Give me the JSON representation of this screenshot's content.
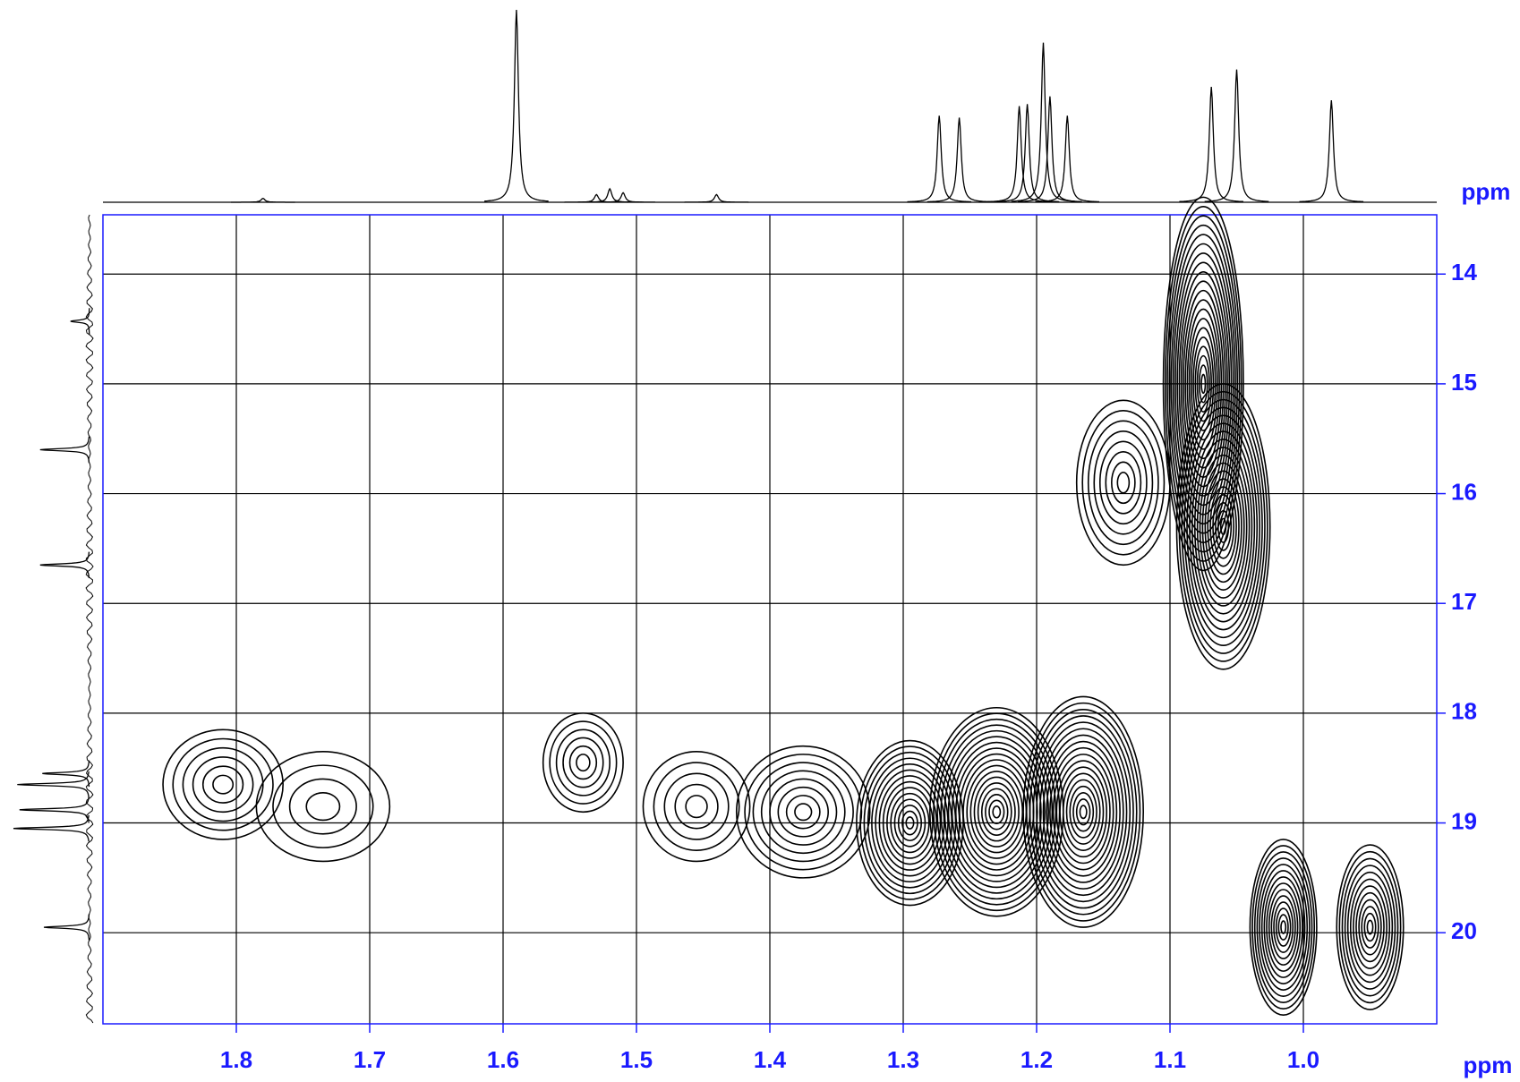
{
  "chart_data": {
    "type": "contour",
    "xlabel": "ppm",
    "ylabel": "ppm",
    "xlim": [
      1.9,
      0.9
    ],
    "ylim": [
      13.46,
      20.83
    ],
    "xticks": [
      1.8,
      1.7,
      1.6,
      1.5,
      1.4,
      1.3,
      1.2,
      1.1,
      {
        "value": 1,
        "label": "1.0"
      }
    ],
    "yticks": [
      14,
      15,
      16,
      17,
      18,
      19,
      20
    ],
    "grid": true,
    "color": "#000000",
    "axis_color": "#1a1aff",
    "peaks": {
      "x": [
        1.81,
        1.735,
        1.54,
        1.455,
        1.375,
        1.295,
        1.23,
        1.165,
        1.075,
        1.06,
        1.135,
        1.015,
        0.95
      ],
      "y": [
        18.65,
        18.85,
        18.45,
        18.85,
        18.9,
        19.0,
        18.9,
        18.9,
        15.0,
        16.3,
        15.9,
        19.95,
        19.95
      ],
      "x_width": [
        0.045,
        0.05,
        0.03,
        0.04,
        0.05,
        0.04,
        0.05,
        0.045,
        0.03,
        0.035,
        0.035,
        0.025,
        0.025
      ],
      "y_width": [
        0.5,
        0.5,
        0.45,
        0.5,
        0.6,
        0.75,
        0.95,
        1.05,
        1.7,
        1.3,
        0.75,
        0.8,
        0.75
      ],
      "levels": [
        6,
        4,
        6,
        5,
        8,
        14,
        18,
        18,
        20,
        18,
        8,
        14,
        12
      ]
    },
    "top_projection": {
      "x": [
        1.78,
        1.59,
        1.53,
        1.52,
        1.51,
        1.44,
        1.273,
        1.258,
        1.213,
        1.207,
        1.195,
        1.19,
        1.177,
        1.069,
        1.05,
        0.979
      ],
      "values": [
        2,
        100,
        4,
        7,
        5,
        4,
        45,
        44,
        50,
        51,
        83,
        55,
        45,
        60,
        69,
        53
      ]
    },
    "left_projection": {
      "y": [
        14.43,
        15.6,
        16.65,
        18.55,
        18.65,
        18.88,
        19.05,
        19.95
      ],
      "values": [
        25,
        65,
        65,
        62,
        95,
        92,
        100,
        60
      ]
    }
  }
}
